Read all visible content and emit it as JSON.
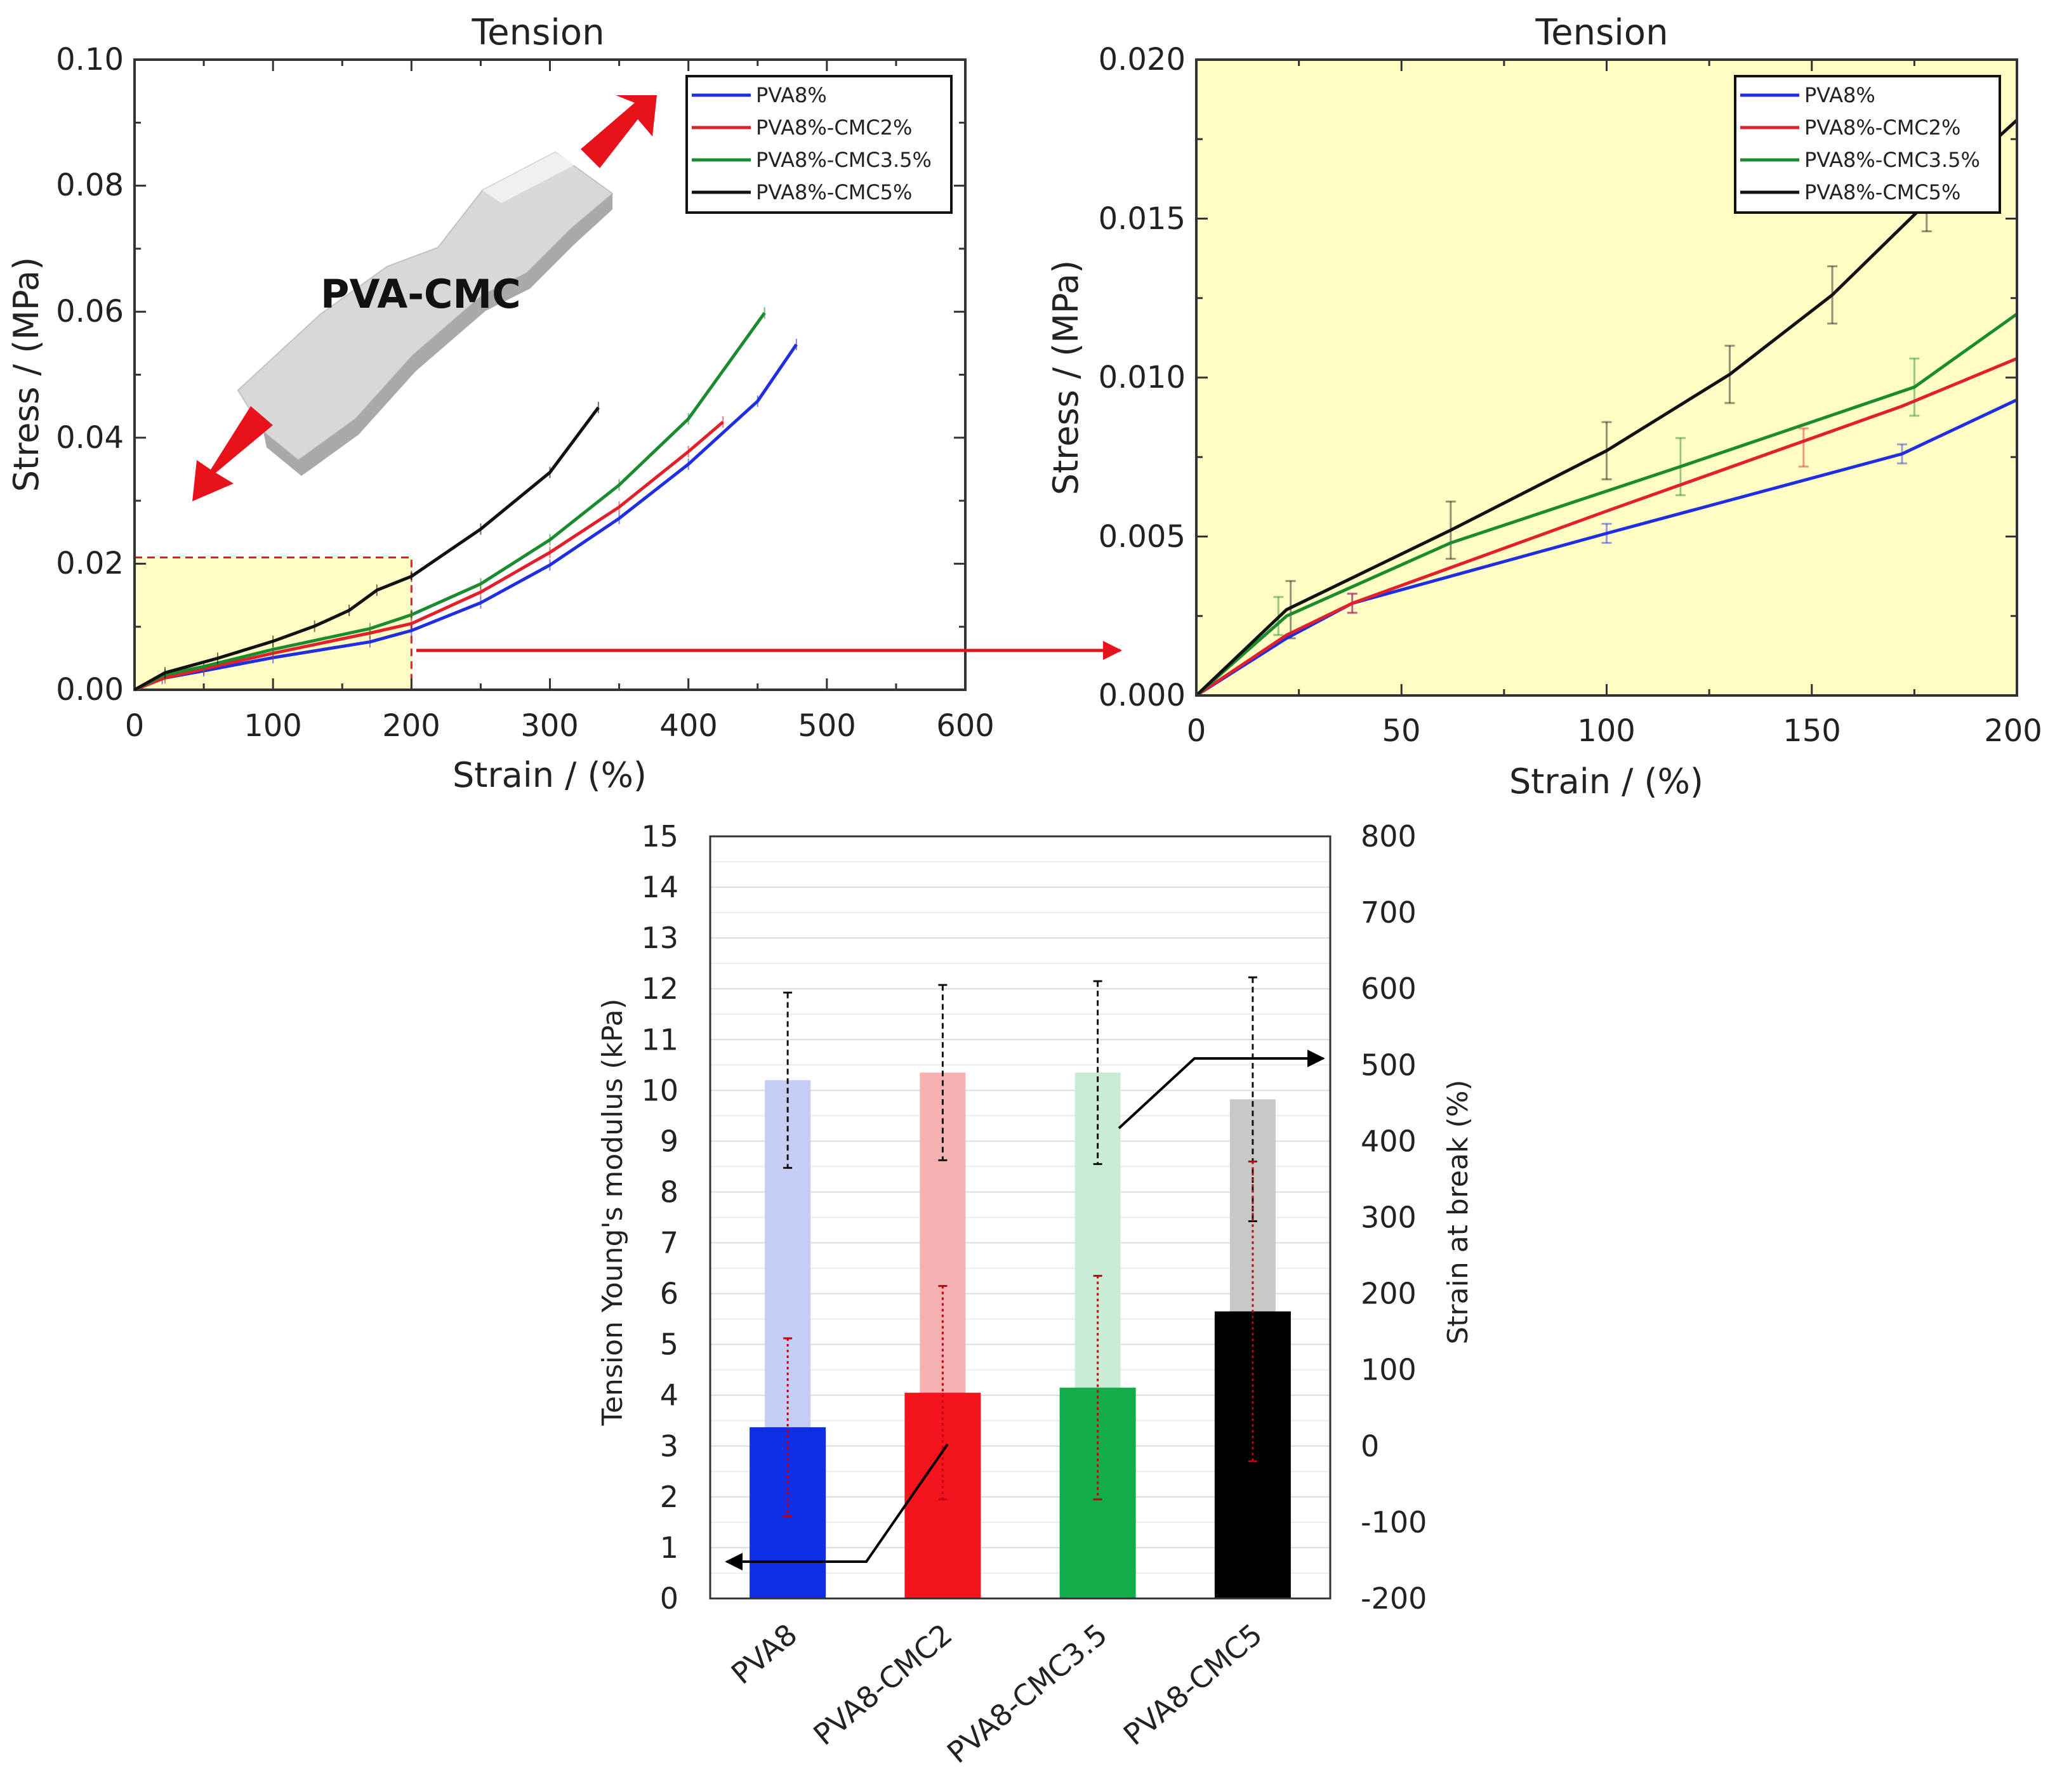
{
  "colors": {
    "PVA8%": "#1f2fe0",
    "PVA8%-CMC2%": "#e0202a",
    "PVA8%-CMC3.5%": "#1c8a2e",
    "PVA8%-CMC5%": "#111111",
    "highlight": "#fffcc4",
    "arrow": "#e8121c"
  },
  "chart_data": [
    {
      "id": "tension-full",
      "type": "line",
      "title": "Tension",
      "xlabel": "Strain / (%)",
      "ylabel": "Stress / (MPa)",
      "xlim": [
        0,
        600
      ],
      "ylim": [
        0,
        0.1
      ],
      "xticks": [
        "0",
        "100",
        "200",
        "300",
        "400",
        "500",
        "600"
      ],
      "yticks": [
        "0.00",
        "0.02",
        "0.04",
        "0.06",
        "0.08",
        "0.10"
      ],
      "legend": "top-right",
      "annotation": "PVA-CMC",
      "highlight_region": {
        "x": [
          0,
          200
        ],
        "y": [
          0,
          0.021
        ]
      },
      "series": [
        {
          "name": "PVA8%",
          "x": [
            0,
            20,
            50,
            100,
            170,
            200,
            250,
            300,
            350,
            400,
            450,
            478
          ],
          "y": [
            0,
            0.0018,
            0.003,
            0.0051,
            0.0076,
            0.0094,
            0.0138,
            0.0198,
            0.0272,
            0.0358,
            0.0458,
            0.0548
          ]
        },
        {
          "name": "PVA8%-CMC2%",
          "x": [
            0,
            22,
            50,
            100,
            170,
            200,
            250,
            300,
            350,
            400,
            425
          ],
          "y": [
            0,
            0.0019,
            0.0033,
            0.0058,
            0.009,
            0.0105,
            0.0155,
            0.0218,
            0.029,
            0.0378,
            0.0425
          ]
        },
        {
          "name": "PVA8%-CMC3.5%",
          "x": [
            0,
            22,
            50,
            100,
            170,
            200,
            250,
            300,
            350,
            400,
            455
          ],
          "y": [
            0,
            0.0024,
            0.0037,
            0.0064,
            0.0097,
            0.0119,
            0.0168,
            0.0238,
            0.0325,
            0.043,
            0.0598
          ]
        },
        {
          "name": "PVA8%-CMC5%",
          "x": [
            0,
            22,
            60,
            100,
            130,
            155,
            175,
            200,
            250,
            300,
            335
          ],
          "y": [
            0,
            0.0027,
            0.005,
            0.0077,
            0.0101,
            0.0126,
            0.0158,
            0.018,
            0.0255,
            0.0345,
            0.0448
          ]
        }
      ]
    },
    {
      "id": "tension-zoom",
      "type": "line",
      "title": "Tension",
      "xlabel": "Strain / (%)",
      "ylabel": "Stress / (MPa)",
      "xlim": [
        0,
        200
      ],
      "ylim": [
        0,
        0.02
      ],
      "xticks": [
        "0",
        "50",
        "100",
        "150",
        "200"
      ],
      "yticks": [
        "0.000",
        "0.005",
        "0.010",
        "0.015",
        "0.020"
      ],
      "legend": "top-right",
      "series": [
        {
          "name": "PVA8%",
          "x": [
            0,
            22,
            38,
            100,
            172,
            200
          ],
          "y": [
            0,
            0.0018,
            0.0029,
            0.0051,
            0.0076,
            0.0093
          ]
        },
        {
          "name": "PVA8%-CMC2%",
          "x": [
            0,
            22,
            38,
            100,
            172,
            200
          ],
          "y": [
            0,
            0.0019,
            0.0029,
            0.0058,
            0.0091,
            0.0106
          ]
        },
        {
          "name": "PVA8%-CMC3.5%",
          "x": [
            0,
            22,
            62,
            118,
            175,
            200
          ],
          "y": [
            0,
            0.0025,
            0.0048,
            0.0072,
            0.0097,
            0.012
          ]
        },
        {
          "name": "PVA8%-CMC5%",
          "x": [
            0,
            22,
            62,
            100,
            130,
            155,
            178,
            200
          ],
          "y": [
            0,
            0.0027,
            0.0052,
            0.0077,
            0.0101,
            0.0126,
            0.0155,
            0.0181
          ]
        }
      ],
      "error_bars": [
        {
          "series": "PVA8%",
          "x": [
            38,
            100,
            172
          ],
          "y": [
            0.0029,
            0.0051,
            0.0076
          ],
          "err": [
            0.0003,
            0.0003,
            0.0003
          ]
        },
        {
          "series": "PVA8%-CMC2%",
          "x": [
            38,
            148
          ],
          "y": [
            0.0029,
            0.0078
          ],
          "err": [
            0.0003,
            0.0006
          ]
        },
        {
          "series": "PVA8%-CMC3.5%",
          "x": [
            20,
            118,
            175
          ],
          "y": [
            0.0025,
            0.0072,
            0.0097
          ],
          "err": [
            0.0006,
            0.0009,
            0.0009
          ]
        },
        {
          "series": "PVA8%-CMC5%",
          "x": [
            23,
            62,
            100,
            130,
            155,
            178
          ],
          "y": [
            0.0027,
            0.0052,
            0.0077,
            0.0101,
            0.0126,
            0.0155
          ],
          "err": [
            0.0009,
            0.0009,
            0.0009,
            0.0009,
            0.0009,
            0.0009
          ]
        }
      ]
    },
    {
      "id": "modulus-strain-bars",
      "type": "bar",
      "categories": [
        "PVA8",
        "PVA8-CMC2",
        "PVA8-CMC3.5",
        "PVA8-CMC5"
      ],
      "ylabel": "Tension Young's modulus (kPa)",
      "y2label": "Strain at break (%)",
      "ylim": [
        0,
        15
      ],
      "y2lim": [
        -200,
        800
      ],
      "yticks": [
        "0",
        "1",
        "2",
        "3",
        "4",
        "5",
        "6",
        "7",
        "8",
        "9",
        "10",
        "11",
        "12",
        "13",
        "14",
        "15"
      ],
      "y2ticks": [
        "-200",
        "-100",
        "0",
        "100",
        "200",
        "300",
        "400",
        "500",
        "600",
        "700",
        "800"
      ],
      "series": [
        {
          "name": "Tension Young's modulus (kPa)",
          "axis": "left",
          "values": [
            3.37,
            4.05,
            4.15,
            5.65
          ],
          "err": [
            1.75,
            2.1,
            2.2,
            2.95
          ]
        },
        {
          "name": "Strain at break (%)",
          "axis": "right",
          "values": [
            480,
            490,
            490,
            455
          ],
          "err": [
            115,
            115,
            120,
            160
          ]
        }
      ],
      "bar_colors": [
        "#0f2ee8",
        "#f5141e",
        "#12ad4a",
        "#000000"
      ],
      "light_colors": [
        "#c5ccf6",
        "#f8b1b3",
        "#c8edd4",
        "#c8c8c8"
      ]
    }
  ]
}
